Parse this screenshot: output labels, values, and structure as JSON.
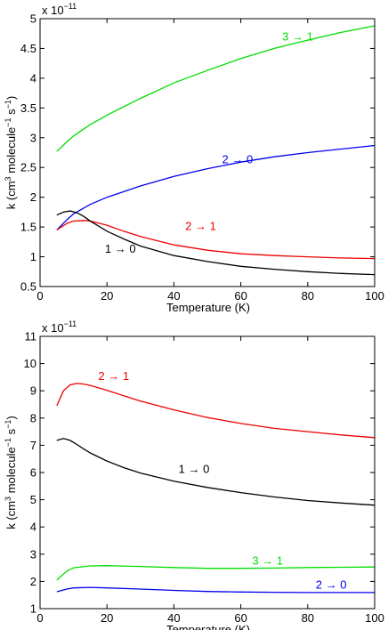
{
  "chart_data": [
    {
      "type": "line",
      "xlabel": "Temperature (K)",
      "ylabel_parts": {
        "a": "k (cm",
        "b": "3",
        "c": " molecule",
        "d": "−1",
        "e": " s",
        "f": "−1",
        "g": ")"
      },
      "exponent_base": "x 10",
      "exponent_power": "−11",
      "xlim": [
        0,
        100
      ],
      "ylim": [
        0.5,
        5
      ],
      "xticks": [
        0,
        20,
        40,
        60,
        80,
        100
      ],
      "yticks": [
        0.5,
        1,
        1.5,
        2,
        2.5,
        3,
        3.5,
        4,
        4.5,
        5
      ],
      "ytick_labels": [
        "0.5",
        "1",
        "1.5",
        "2",
        "2.5",
        "3",
        "3.5",
        "4",
        "4.5",
        "5"
      ],
      "series": [
        {
          "name": "3 → 1",
          "color": "#00dd00",
          "x": [
            5,
            8,
            10,
            15,
            20,
            30,
            40,
            50,
            60,
            70,
            80,
            90,
            100
          ],
          "y": [
            2.77,
            2.93,
            3.03,
            3.22,
            3.38,
            3.66,
            3.92,
            4.13,
            4.33,
            4.5,
            4.64,
            4.77,
            4.88
          ],
          "label_at": [
            77,
            4.63
          ]
        },
        {
          "name": "2 → 0",
          "color": "#0000ee",
          "x": [
            5,
            8,
            10,
            15,
            20,
            30,
            40,
            50,
            60,
            70,
            80,
            90,
            100
          ],
          "y": [
            1.45,
            1.62,
            1.72,
            1.88,
            2.0,
            2.19,
            2.35,
            2.48,
            2.59,
            2.68,
            2.75,
            2.81,
            2.87
          ],
          "label_at": [
            59,
            2.57
          ]
        },
        {
          "name": "2 → 1",
          "color": "#ee0000",
          "x": [
            5,
            8,
            10,
            13,
            15,
            20,
            25,
            30,
            40,
            50,
            60,
            70,
            80,
            90,
            100
          ],
          "y": [
            1.45,
            1.56,
            1.6,
            1.61,
            1.6,
            1.53,
            1.43,
            1.34,
            1.2,
            1.11,
            1.05,
            1.02,
            1.0,
            0.98,
            0.97
          ],
          "label_at": [
            48,
            1.45
          ]
        },
        {
          "name": "1 → 0",
          "color": "#000000",
          "x": [
            5,
            7,
            9,
            11,
            13,
            15,
            20,
            25,
            30,
            40,
            50,
            60,
            70,
            80,
            90,
            100
          ],
          "y": [
            1.7,
            1.75,
            1.77,
            1.74,
            1.68,
            1.6,
            1.43,
            1.3,
            1.18,
            1.02,
            0.92,
            0.84,
            0.79,
            0.75,
            0.72,
            0.7
          ],
          "label_at": [
            24,
            1.07
          ]
        }
      ]
    },
    {
      "type": "line",
      "xlabel": "Temperature (K)",
      "ylabel_parts": {
        "a": "k (cm",
        "b": "3",
        "c": " molecule",
        "d": "−1",
        "e": " s",
        "f": "−1",
        "g": ")"
      },
      "exponent_base": "x 10",
      "exponent_power": "−11",
      "xlim": [
        0,
        100
      ],
      "ylim": [
        1,
        11
      ],
      "xticks": [
        0,
        20,
        40,
        60,
        80,
        100
      ],
      "yticks": [
        1,
        2,
        3,
        4,
        5,
        6,
        7,
        8,
        9,
        10,
        11
      ],
      "ytick_labels": [
        "1",
        "2",
        "3",
        "4",
        "5",
        "6",
        "7",
        "8",
        "9",
        "10",
        "11"
      ],
      "series": [
        {
          "name": "2 → 1",
          "color": "#ee0000",
          "x": [
            5,
            7,
            9,
            11,
            13,
            15,
            20,
            25,
            30,
            40,
            50,
            60,
            70,
            80,
            90,
            100
          ],
          "y": [
            8.45,
            9.0,
            9.22,
            9.27,
            9.25,
            9.2,
            9.02,
            8.82,
            8.62,
            8.3,
            8.02,
            7.8,
            7.62,
            7.5,
            7.38,
            7.28
          ],
          "label_at": [
            22,
            9.4
          ]
        },
        {
          "name": "1 → 0",
          "color": "#000000",
          "x": [
            5,
            7,
            9,
            11,
            13,
            15,
            20,
            25,
            30,
            40,
            50,
            60,
            70,
            80,
            90,
            100
          ],
          "y": [
            7.18,
            7.25,
            7.18,
            7.03,
            6.87,
            6.72,
            6.42,
            6.18,
            5.98,
            5.68,
            5.45,
            5.26,
            5.1,
            4.97,
            4.88,
            4.8
          ],
          "label_at": [
            46,
            5.98
          ]
        },
        {
          "name": "3 → 1",
          "color": "#00dd00",
          "x": [
            5,
            8,
            10,
            15,
            20,
            30,
            40,
            50,
            60,
            70,
            80,
            90,
            100
          ],
          "y": [
            2.05,
            2.38,
            2.5,
            2.57,
            2.58,
            2.55,
            2.51,
            2.48,
            2.48,
            2.49,
            2.51,
            2.52,
            2.53
          ],
          "label_at": [
            68,
            2.62
          ]
        },
        {
          "name": "2 → 0",
          "color": "#0000ee",
          "x": [
            5,
            8,
            10,
            15,
            20,
            30,
            40,
            50,
            60,
            70,
            80,
            90,
            100
          ],
          "y": [
            1.62,
            1.72,
            1.76,
            1.78,
            1.76,
            1.72,
            1.67,
            1.63,
            1.61,
            1.6,
            1.59,
            1.59,
            1.59
          ],
          "label_at": [
            87,
            1.74
          ]
        }
      ]
    }
  ]
}
